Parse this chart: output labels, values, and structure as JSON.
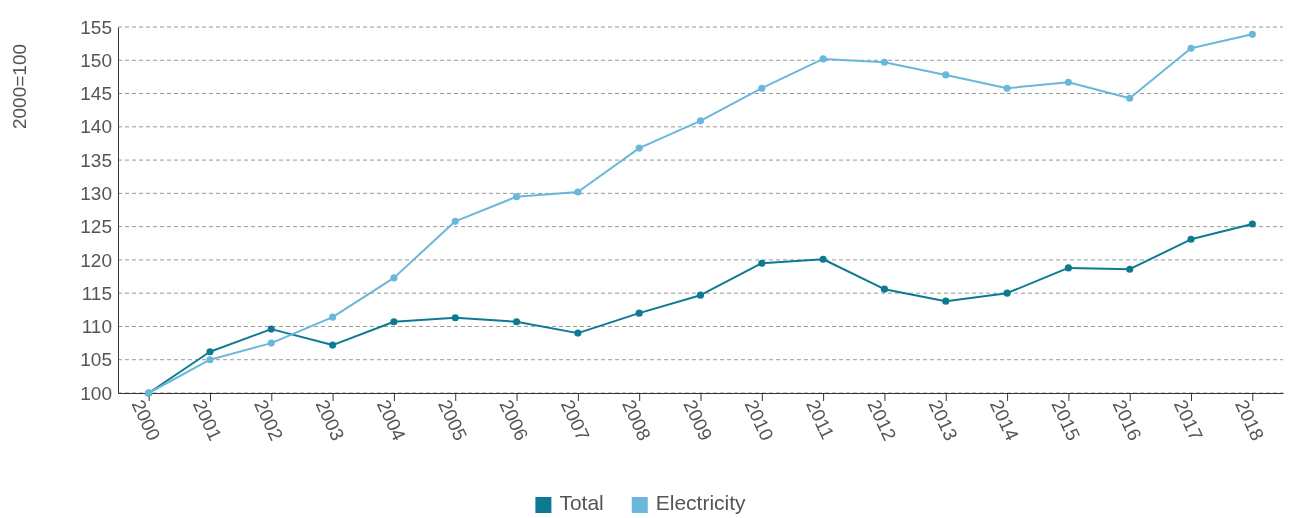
{
  "chart_data": {
    "type": "line",
    "ylabel": "2000=100",
    "categories": [
      "2000",
      "2001",
      "2002",
      "2003",
      "2004",
      "2005",
      "2006",
      "2007",
      "2008",
      "2009",
      "2010",
      "2011",
      "2012",
      "2013",
      "2014",
      "2015",
      "2016",
      "2017",
      "2018"
    ],
    "series": [
      {
        "name": "Total",
        "color": "#0e7a92",
        "values": [
          100,
          106.2,
          109.6,
          107.2,
          110.7,
          111.3,
          110.7,
          109,
          112,
          114.7,
          119.5,
          120.1,
          115.6,
          113.8,
          115,
          118.8,
          118.6,
          123.1,
          125.4
        ]
      },
      {
        "name": "Electricity",
        "color": "#6ab7db",
        "values": [
          100,
          105,
          107.5,
          111.4,
          117.3,
          125.8,
          129.5,
          130.2,
          136.8,
          140.9,
          145.8,
          150.2,
          149.7,
          147.8,
          145.8,
          146.7,
          144.3,
          151.8,
          153.9
        ]
      }
    ],
    "ylim": [
      100,
      155
    ],
    "yticks": [
      100,
      105,
      110,
      115,
      120,
      125,
      130,
      135,
      140,
      145,
      150,
      155
    ],
    "grid": "y",
    "legend": "bottom",
    "marker": "circle",
    "line_style": "solid"
  }
}
